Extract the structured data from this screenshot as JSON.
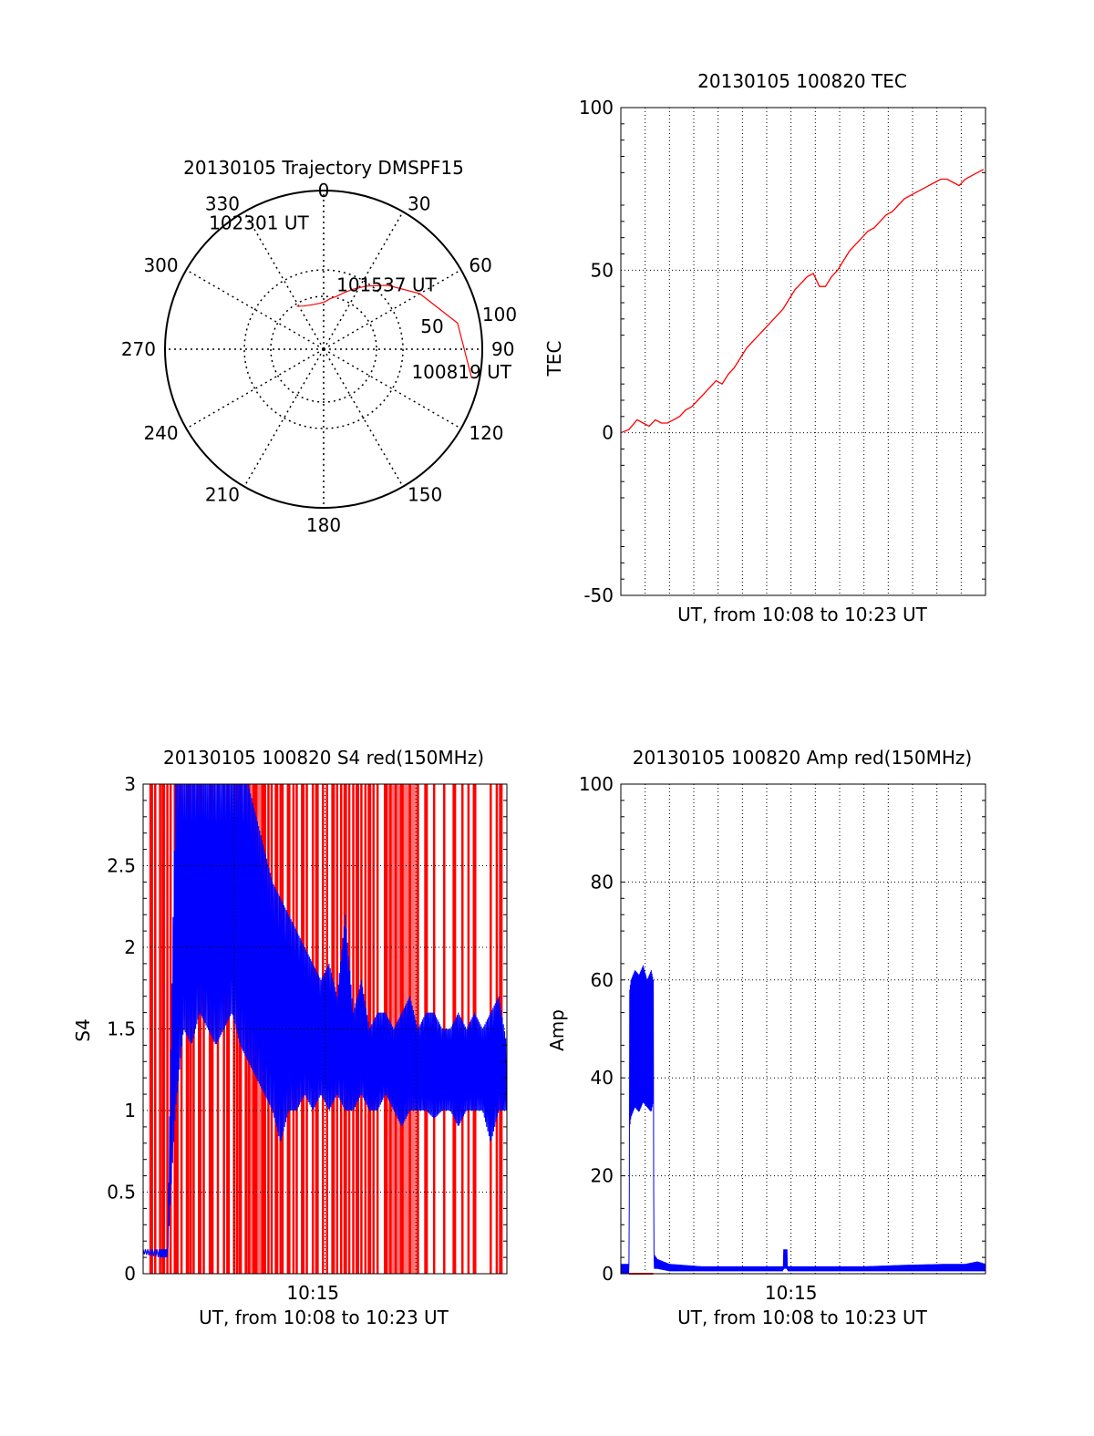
{
  "colors": {
    "red": "#ff0000",
    "blue": "#0000ff",
    "axis": "#000000",
    "grid": "#000000"
  },
  "chart_data": [
    {
      "id": "polar",
      "type": "polar",
      "title": "20130105 Trajectory DMSPF15",
      "azimuth_ticks": [
        "0",
        "30",
        "60",
        "90",
        "120",
        "150",
        "180",
        "210",
        "240",
        "270",
        "300",
        "330"
      ],
      "radial_ticks": [
        "50",
        "100"
      ],
      "rmax": 100,
      "trajectory": [
        [
          95,
          101
        ],
        [
          86,
          79
        ],
        [
          70,
          60
        ],
        [
          57,
          45
        ],
        [
          48,
          34
        ],
        [
          42,
          26
        ],
        [
          38,
          20
        ],
        [
          34,
          13
        ],
        [
          32,
          7
        ],
        [
          30,
          2
        ],
        [
          29,
          355
        ],
        [
          29,
          345
        ],
        [
          30,
          335
        ],
        [
          32,
          328
        ]
      ],
      "annotations": [
        {
          "text": "102301 UT",
          "az": 333,
          "r": 90
        },
        {
          "text": "101537 UT",
          "az": 44,
          "r": 57
        },
        {
          "text": "100819 UT",
          "az": 99,
          "r": 88
        }
      ]
    },
    {
      "id": "tec",
      "type": "line",
      "title": "20130105 100820 TEC",
      "xlabel": "UT, from 10:08 to 10:23 UT",
      "ylabel": "TEC",
      "yticks": [
        "100",
        "50",
        "0",
        "-50"
      ],
      "ylim": [
        -50,
        100
      ],
      "xlim": [
        0,
        900
      ],
      "series": [
        {
          "color": "red",
          "x": [
            0,
            20,
            40,
            55,
            70,
            85,
            100,
            115,
            130,
            145,
            160,
            175,
            190,
            205,
            220,
            235,
            250,
            265,
            280,
            295,
            310,
            325,
            340,
            355,
            370,
            385,
            400,
            415,
            430,
            445,
            460,
            475,
            490,
            505,
            520,
            535,
            550,
            565,
            580,
            595,
            610,
            625,
            640,
            655,
            670,
            685,
            700,
            715,
            730,
            745,
            760,
            775,
            790,
            805,
            820,
            835,
            850,
            865,
            880,
            895
          ],
          "y": [
            0,
            1,
            4,
            3,
            2,
            4,
            3,
            3,
            4,
            5,
            7,
            8,
            10,
            12,
            14,
            16,
            15,
            18,
            20,
            23,
            26,
            28,
            30,
            32,
            34,
            36,
            38,
            41,
            44,
            46,
            48,
            49,
            45,
            45,
            48,
            50,
            53,
            56,
            58,
            60,
            62,
            63,
            65,
            67,
            68,
            70,
            72,
            73,
            74,
            75,
            76,
            77,
            78,
            78,
            77,
            76,
            78,
            79,
            80,
            81
          ]
        }
      ]
    },
    {
      "id": "s4",
      "type": "line",
      "title": "20130105 100820 S4 red(150MHz)",
      "xlabel": "UT, from 10:08 to 10:23 UT",
      "ylabel": "S4",
      "yticks": [
        "3",
        "2.5",
        "2",
        "1.5",
        "1",
        "0.5",
        "0"
      ],
      "ylim": [
        0,
        3
      ],
      "xlim": [
        0,
        900
      ],
      "xtick_label": "10:15",
      "xtick_value": 420,
      "red_spikes_x": [
        20,
        30,
        42,
        50,
        60,
        68,
        80,
        85,
        95,
        110,
        118,
        125,
        140,
        150,
        165,
        170,
        185,
        200,
        210,
        225,
        232,
        240,
        255,
        262,
        275,
        280,
        295,
        300,
        310,
        318,
        330,
        340,
        345,
        360,
        372,
        380,
        395,
        405,
        420,
        430,
        445,
        455,
        470,
        480,
        490,
        500,
        510,
        520,
        530,
        540,
        550,
        560,
        570,
        580,
        600,
        612,
        625,
        640,
        660,
        680,
        700,
        720,
        745,
        770,
        790,
        805,
        820,
        860,
        875,
        885
      ],
      "blue_envelope": {
        "x": [
          0,
          40,
          60,
          80,
          100,
          120,
          140,
          160,
          180,
          200,
          220,
          240,
          260,
          280,
          300,
          320,
          340,
          360,
          380,
          400,
          420,
          440,
          460,
          480,
          500,
          520,
          540,
          560,
          580,
          600,
          620,
          640,
          660,
          680,
          700,
          720,
          740,
          760,
          780,
          800,
          820,
          840,
          860,
          880,
          900
        ],
        "low": [
          0.12,
          0.1,
          0.1,
          1.0,
          1.5,
          1.4,
          1.6,
          1.5,
          1.4,
          1.5,
          1.6,
          1.4,
          1.3,
          1.2,
          1.1,
          1.0,
          0.8,
          1.0,
          1.0,
          1.1,
          1.0,
          1.1,
          1.0,
          1.1,
          1.0,
          1.0,
          1.1,
          1.0,
          1.0,
          1.1,
          1.0,
          0.9,
          1.0,
          1.0,
          1.0,
          0.95,
          1.0,
          1.0,
          0.9,
          1.0,
          1.0,
          1.0,
          0.8,
          1.0,
          1.0
        ],
        "high": [
          0.15,
          0.15,
          0.15,
          3.0,
          3.0,
          3.0,
          3.0,
          3.0,
          3.0,
          3.0,
          3.0,
          3.0,
          3.0,
          2.8,
          2.6,
          2.4,
          2.3,
          2.2,
          2.1,
          2.0,
          1.9,
          1.8,
          1.9,
          1.7,
          2.2,
          1.6,
          1.8,
          1.5,
          1.6,
          1.6,
          1.5,
          1.6,
          1.7,
          1.5,
          1.6,
          1.6,
          1.5,
          1.5,
          1.6,
          1.5,
          1.6,
          1.5,
          1.6,
          1.7,
          1.4
        ]
      }
    },
    {
      "id": "amp",
      "type": "line",
      "title": "20130105 100820 Amp red(150MHz)",
      "xlabel": "UT, from 10:08 to 10:23 UT",
      "ylabel": "Amp",
      "yticks": [
        "100",
        "80",
        "60",
        "40",
        "20",
        "0"
      ],
      "ylim": [
        0,
        100
      ],
      "xlim": [
        0,
        900
      ],
      "xtick_label": "10:15",
      "xtick_value": 420,
      "series": [
        {
          "color": "blue",
          "x": [
            0,
            20,
            22,
            25,
            35,
            45,
            55,
            65,
            75,
            80,
            82,
            90,
            120,
            200,
            300,
            380,
            400,
            402,
            410,
            412,
            500,
            600,
            700,
            800,
            850,
            880,
            900
          ],
          "low": [
            0,
            0,
            30,
            32,
            34,
            33,
            35,
            34,
            33,
            35,
            1,
            1,
            0.5,
            0.5,
            0.5,
            0.5,
            0.5,
            1,
            1,
            0.5,
            0.5,
            0.5,
            0.5,
            0.5,
            0.5,
            0.5,
            0.5
          ],
          "high": [
            2,
            2,
            58,
            60,
            62,
            61,
            63,
            60,
            62,
            60,
            4,
            3,
            2,
            1.5,
            1.5,
            1.5,
            1.5,
            5,
            5,
            1.5,
            1.5,
            1.5,
            1.8,
            2,
            2,
            2.5,
            2
          ]
        }
      ]
    }
  ]
}
